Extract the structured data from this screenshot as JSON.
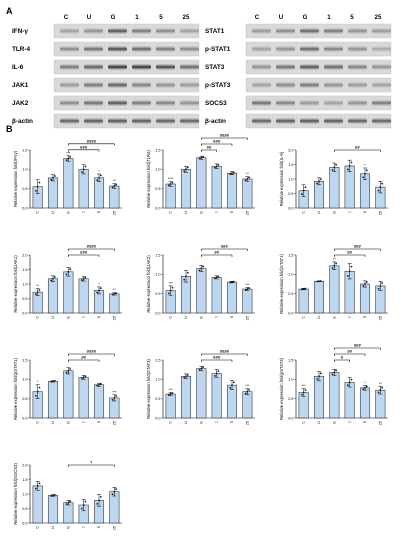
{
  "panel_a": {
    "letter": "A",
    "columns": [
      "C",
      "U",
      "G",
      "1",
      "5",
      "25"
    ],
    "left_blots": [
      "IFN-γ",
      "TLR-4",
      "IL-6",
      "JAK1",
      "JAK2",
      "β-actin"
    ],
    "right_blots": [
      "STAT1",
      "p-STAT1",
      "STAT3",
      "p-STAT3",
      "SOCS3",
      "β-actin"
    ]
  },
  "panel_b": {
    "letter": "B"
  },
  "chart_data": [
    {
      "type": "bar",
      "ylabel": "Relative expression fold(IFNγ)",
      "categories": [
        "C",
        "U",
        "G",
        "1",
        "5",
        "25"
      ],
      "values": [
        0.55,
        0.78,
        1.28,
        1.0,
        0.78,
        0.57
      ],
      "errors": [
        0.18,
        0.08,
        0.07,
        0.12,
        0.1,
        0.06
      ],
      "ylim": [
        0,
        1.5
      ],
      "yticks": [
        "0.0",
        "0.5",
        "1.0",
        "1.5"
      ],
      "marks": [
        "",
        "",
        "***",
        "",
        "*",
        "**"
      ],
      "brackets": [
        {
          "from": 2,
          "to": 4,
          "label": "###",
          "level": 0
        },
        {
          "from": 2,
          "to": 5,
          "label": "####",
          "level": 1
        }
      ]
    },
    {
      "type": "bar",
      "ylabel": "Relative expression fold(TLR4)",
      "categories": [
        "C",
        "U",
        "G",
        "1",
        "5",
        "25"
      ],
      "values": [
        0.62,
        1.0,
        1.3,
        1.08,
        0.9,
        0.75
      ],
      "errors": [
        0.06,
        0.08,
        0.04,
        0.06,
        0.04,
        0.06
      ],
      "ylim": [
        0,
        1.5
      ],
      "yticks": [
        "0.0",
        "0.5",
        "1.0",
        "1.5"
      ],
      "marks": [
        "****",
        "",
        "",
        "",
        "",
        "**"
      ],
      "brackets": [
        {
          "from": 2,
          "to": 3,
          "label": "##",
          "level": 0
        },
        {
          "from": 2,
          "to": 4,
          "label": "###",
          "level": 1
        },
        {
          "from": 2,
          "to": 5,
          "label": "####",
          "level": 2
        }
      ]
    },
    {
      "type": "bar",
      "ylabel": "Relative expression fold(IL-6)",
      "categories": [
        "C",
        "U",
        "G",
        "1",
        "5",
        "25"
      ],
      "values": [
        0.6,
        0.92,
        1.4,
        1.45,
        1.18,
        0.72
      ],
      "errors": [
        0.2,
        0.12,
        0.15,
        0.2,
        0.2,
        0.2
      ],
      "ylim": [
        0,
        2.0
      ],
      "yticks": [
        "0.0",
        "0.5",
        "1.0",
        "1.5",
        "2.0"
      ],
      "marks": [
        "",
        "",
        "",
        "",
        "*",
        ""
      ],
      "brackets": [
        {
          "from": 2,
          "to": 5,
          "label": "##",
          "level": 0
        }
      ]
    },
    {
      "type": "bar",
      "ylabel": "Relative expression fold(JAK1)",
      "categories": [
        "C",
        "U",
        "G",
        "1",
        "5",
        "25"
      ],
      "values": [
        0.72,
        1.18,
        1.42,
        1.18,
        0.78,
        0.66
      ],
      "errors": [
        0.12,
        0.1,
        0.15,
        0.08,
        0.12,
        0.04
      ],
      "ylim": [
        0,
        2.0
      ],
      "yticks": [
        "0.0",
        "0.5",
        "1.0",
        "1.5",
        "2.0"
      ],
      "marks": [
        "**",
        "",
        "",
        "",
        "*",
        "**"
      ],
      "brackets": [
        {
          "from": 2,
          "to": 4,
          "label": "###",
          "level": 0
        },
        {
          "from": 2,
          "to": 5,
          "label": "####",
          "level": 1
        }
      ]
    },
    {
      "type": "bar",
      "ylabel": "Relative expression fold(JAK2)",
      "categories": [
        "C",
        "U",
        "G",
        "1",
        "5",
        "25"
      ],
      "values": [
        0.58,
        0.95,
        1.15,
        0.92,
        0.8,
        0.62
      ],
      "errors": [
        0.12,
        0.15,
        0.08,
        0.04,
        0.02,
        0.04
      ],
      "ylim": [
        0,
        1.5
      ],
      "yticks": [
        "0.0",
        "0.5",
        "1.0",
        "1.5"
      ],
      "marks": [
        "***",
        "",
        "",
        "",
        "",
        "***"
      ],
      "brackets": [
        {
          "from": 2,
          "to": 4,
          "label": "##",
          "level": 0
        },
        {
          "from": 2,
          "to": 5,
          "label": "###",
          "level": 1
        }
      ]
    },
    {
      "type": "bar",
      "ylabel": "Relative expression fold(STAT1)",
      "categories": [
        "C",
        "U",
        "G",
        "1",
        "5",
        "25"
      ],
      "values": [
        0.62,
        0.82,
        1.22,
        1.08,
        0.75,
        0.7
      ],
      "errors": [
        0.02,
        0.01,
        0.1,
        0.2,
        0.08,
        0.12
      ],
      "ylim": [
        0,
        1.5
      ],
      "yticks": [
        "0.0",
        "0.5",
        "1.0",
        "1.5"
      ],
      "marks": [
        "",
        "",
        "**",
        "",
        "",
        ""
      ],
      "brackets": [
        {
          "from": 2,
          "to": 4,
          "label": "##",
          "level": 0
        },
        {
          "from": 2,
          "to": 5,
          "label": "###",
          "level": 1
        }
      ]
    },
    {
      "type": "bar",
      "ylabel": "Relative expression fold(pSTAT1)",
      "categories": [
        "C",
        "U",
        "G",
        "1",
        "5",
        "25"
      ],
      "values": [
        0.68,
        0.95,
        1.22,
        1.05,
        0.86,
        0.52
      ],
      "errors": [
        0.18,
        0.02,
        0.08,
        0.05,
        0.04,
        0.08
      ],
      "ylim": [
        0,
        1.5
      ],
      "yticks": [
        "0.0",
        "0.5",
        "1.0",
        "1.5"
      ],
      "marks": [
        "*",
        "",
        "",
        "",
        "",
        "***"
      ],
      "brackets": [
        {
          "from": 2,
          "to": 4,
          "label": "##",
          "level": 0
        },
        {
          "from": 2,
          "to": 5,
          "label": "####",
          "level": 1
        }
      ]
    },
    {
      "type": "bar",
      "ylabel": "Relative expression fold(STAT3)",
      "categories": [
        "C",
        "U",
        "G",
        "1",
        "5",
        "25"
      ],
      "values": [
        0.62,
        1.08,
        1.28,
        1.15,
        0.85,
        0.68
      ],
      "errors": [
        0.04,
        0.06,
        0.06,
        0.1,
        0.12,
        0.08
      ],
      "ylim": [
        0,
        1.5
      ],
      "yticks": [
        "0.0",
        "0.5",
        "1.0",
        "1.5"
      ],
      "marks": [
        "***",
        "",
        "",
        "",
        "",
        "***"
      ],
      "brackets": [
        {
          "from": 2,
          "to": 4,
          "label": "###",
          "level": 0
        },
        {
          "from": 2,
          "to": 5,
          "label": "####",
          "level": 1
        }
      ]
    },
    {
      "type": "bar",
      "ylabel": "Relative expression fold(pSTAT3)",
      "categories": [
        "C",
        "U",
        "G",
        "1",
        "5",
        "25"
      ],
      "values": [
        0.66,
        1.08,
        1.18,
        0.92,
        0.78,
        0.72
      ],
      "errors": [
        0.1,
        0.12,
        0.08,
        0.12,
        0.06,
        0.1
      ],
      "ylim": [
        0,
        1.5
      ],
      "yticks": [
        "0.0",
        "0.5",
        "1.0",
        "1.5"
      ],
      "marks": [
        "***",
        "",
        "",
        "",
        "*",
        "**"
      ],
      "brackets": [
        {
          "from": 2,
          "to": 3,
          "label": "#",
          "level": 0
        },
        {
          "from": 2,
          "to": 4,
          "label": "##",
          "level": 1
        },
        {
          "from": 2,
          "to": 5,
          "label": "###",
          "level": 2
        }
      ]
    },
    {
      "type": "bar",
      "ylabel": "Relative expression fold(SOCS3)",
      "categories": [
        "C",
        "U",
        "G",
        "1",
        "5",
        "25"
      ],
      "values": [
        1.28,
        0.95,
        0.7,
        0.62,
        0.78,
        1.08
      ],
      "errors": [
        0.15,
        0.03,
        0.08,
        0.2,
        0.2,
        0.15
      ],
      "ylim": [
        0,
        2.0
      ],
      "yticks": [
        "0.0",
        "0.5",
        "1.0",
        "1.5",
        "2.0"
      ],
      "marks": [
        "",
        "",
        "",
        "",
        "",
        ""
      ],
      "brackets": [
        {
          "from": 2,
          "to": 5,
          "label": "*",
          "level": 0
        }
      ]
    }
  ]
}
